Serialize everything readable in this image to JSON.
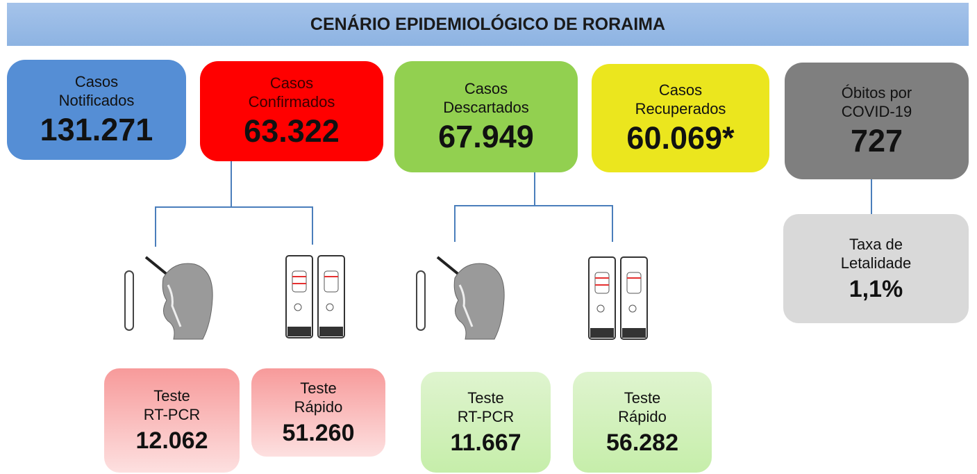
{
  "header": {
    "title": "CENÁRIO EPIDEMIOLÓGICO DE RORAIMA"
  },
  "cards": [
    {
      "label": [
        "Casos",
        "Notificados"
      ],
      "value": "131.271"
    },
    {
      "label": [
        "Casos",
        "Confirmados"
      ],
      "value": "63.322"
    },
    {
      "label": [
        "Casos",
        "Descartados"
      ],
      "value": "67.949"
    },
    {
      "label": [
        "Casos",
        "Recuperados"
      ],
      "value": "60.069*"
    },
    {
      "label": [
        "Óbitos por",
        "COVID-19"
      ],
      "value": "727"
    }
  ],
  "lethality": {
    "label": [
      "Taxa de",
      "Letalidade"
    ],
    "value": "1,1%"
  },
  "tests": [
    {
      "label": [
        "Teste",
        "RT-PCR"
      ],
      "value": "12.062"
    },
    {
      "label": [
        "Teste",
        "Rápido"
      ],
      "value": "51.260"
    },
    {
      "label": [
        "Teste",
        "RT-PCR"
      ],
      "value": "11.667"
    },
    {
      "label": [
        "Teste",
        "Rápido"
      ],
      "value": "56.282"
    }
  ]
}
